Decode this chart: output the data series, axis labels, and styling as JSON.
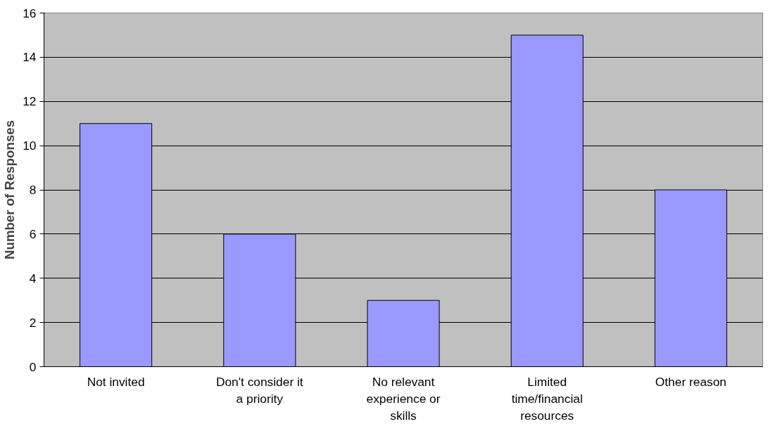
{
  "chart_data": {
    "type": "bar",
    "ylabel": "Number of Responses",
    "categories": [
      "Not invited",
      "Don't consider it a priority",
      "No relevant experience or skills",
      "Limited time/financial resources",
      "Other reason"
    ],
    "values": [
      11,
      6,
      3,
      15,
      8
    ],
    "color": "#9999ff",
    "ylim": [
      0,
      16
    ],
    "yticks": [
      0,
      2,
      4,
      6,
      8,
      10,
      12,
      14,
      16
    ],
    "grid": "y"
  }
}
